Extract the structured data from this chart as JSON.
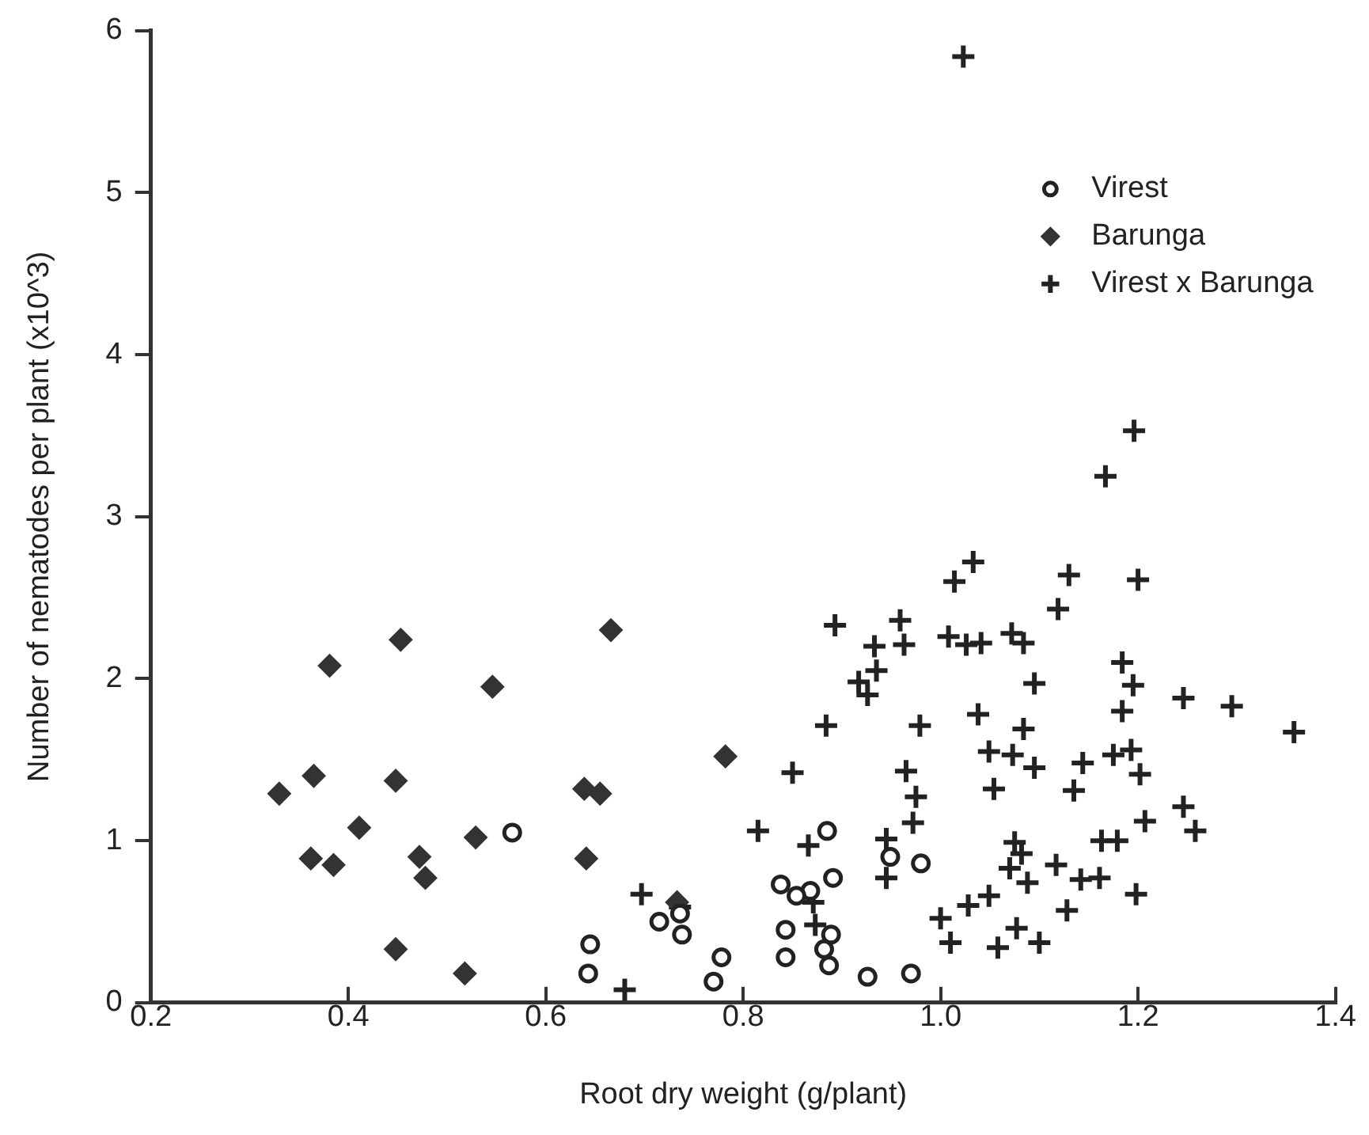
{
  "chart_data": {
    "type": "scatter",
    "xlabel": "Root dry weight (g/plant)",
    "ylabel": "Number of nematodes per plant (x10^3)",
    "xlim": [
      0.2,
      1.4
    ],
    "xticks": [
      {
        "value": 0.2,
        "label": "0.2"
      },
      {
        "value": 0.4,
        "label": "0.4"
      },
      {
        "value": 0.6,
        "label": "0.6"
      },
      {
        "value": 0.8,
        "label": "0.8"
      },
      {
        "value": 1.0,
        "label": "1.0"
      },
      {
        "value": 1.2,
        "label": "1.2"
      },
      {
        "value": 1.4,
        "label": "1.4"
      }
    ],
    "ylim": [
      0,
      6
    ],
    "yticks": [
      0,
      1,
      2,
      3,
      4,
      5,
      6
    ],
    "grid": false,
    "legend": "top right",
    "series": [
      {
        "name": "Virest",
        "color": "#222222",
        "marker": "circle",
        "x": [
          0.566,
          0.645,
          0.643,
          0.715,
          0.736,
          0.738,
          0.778,
          0.77,
          0.838,
          0.868,
          0.885,
          0.891,
          0.843,
          0.843,
          0.889,
          0.882,
          0.887,
          0.926,
          0.97,
          0.949,
          0.98,
          0.854
        ],
        "values": [
          1.05,
          0.36,
          0.18,
          0.5,
          0.55,
          0.42,
          0.28,
          0.13,
          0.73,
          0.69,
          1.06,
          0.77,
          0.45,
          0.28,
          0.42,
          0.33,
          0.23,
          0.16,
          0.18,
          0.9,
          0.86,
          0.66
        ]
      },
      {
        "name": "Barunga",
        "color": "#333333",
        "marker": "diamond",
        "x": [
          0.33,
          0.365,
          0.381,
          0.453,
          0.546,
          0.666,
          0.448,
          0.639,
          0.655,
          0.411,
          0.529,
          0.362,
          0.385,
          0.472,
          0.478,
          0.641,
          0.448,
          0.518,
          0.782,
          0.733
        ],
        "values": [
          1.29,
          1.4,
          2.08,
          2.24,
          1.95,
          2.3,
          1.37,
          1.32,
          1.29,
          1.08,
          1.02,
          0.89,
          0.85,
          0.9,
          0.77,
          0.89,
          0.33,
          0.18,
          1.52,
          0.62
        ]
      },
      {
        "name": "Virest x Barunga",
        "color": "#222222",
        "marker": "cross",
        "x": [
          0.697,
          0.68,
          0.736,
          0.815,
          0.85,
          0.884,
          0.893,
          0.933,
          0.917,
          0.926,
          0.935,
          0.959,
          0.963,
          1.008,
          1.026,
          1.014,
          1.033,
          0.979,
          1.038,
          0.965,
          0.975,
          0.972,
          0.866,
          0.945,
          0.945,
          0.873,
          1.0,
          1.01,
          1.028,
          0.871,
          1.196,
          1.167,
          1.13,
          1.2,
          1.119,
          1.041,
          1.072,
          1.084,
          1.095,
          1.184,
          1.195,
          1.246,
          1.295,
          1.358,
          1.184,
          1.084,
          1.049,
          1.073,
          1.095,
          1.144,
          1.175,
          1.193,
          1.202,
          1.054,
          1.135,
          1.246,
          1.258,
          1.207,
          1.163,
          1.179,
          1.075,
          1.082,
          1.07,
          1.117,
          1.088,
          1.142,
          1.161,
          1.198,
          1.128,
          1.049,
          1.077,
          1.058,
          1.1,
          1.023
        ],
        "values": [
          0.67,
          0.08,
          0.59,
          1.06,
          1.42,
          1.71,
          2.33,
          2.2,
          1.98,
          1.9,
          2.05,
          2.36,
          2.21,
          2.26,
          2.21,
          2.6,
          2.72,
          1.71,
          1.78,
          1.43,
          1.27,
          1.11,
          0.97,
          1.01,
          0.77,
          0.48,
          0.52,
          0.37,
          0.6,
          0.62,
          3.53,
          3.25,
          2.64,
          2.61,
          2.43,
          2.22,
          2.28,
          2.22,
          1.97,
          2.1,
          1.96,
          1.88,
          1.83,
          1.67,
          1.8,
          1.69,
          1.55,
          1.53,
          1.45,
          1.48,
          1.53,
          1.56,
          1.41,
          1.32,
          1.31,
          1.21,
          1.06,
          1.12,
          1.0,
          1.0,
          0.99,
          0.92,
          0.83,
          0.85,
          0.74,
          0.76,
          0.77,
          0.67,
          0.57,
          0.66,
          0.46,
          0.34,
          0.37,
          5.84
        ]
      }
    ]
  }
}
